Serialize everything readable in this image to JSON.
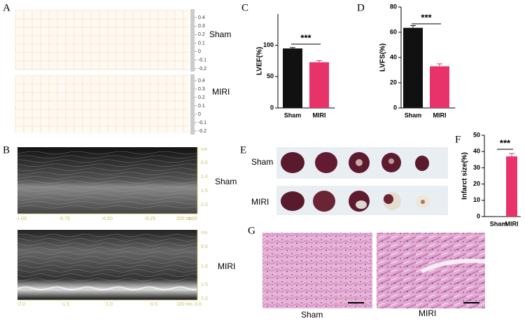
{
  "panel_labels": [
    "A",
    "B",
    "C",
    "D",
    "E",
    "F",
    "G"
  ],
  "ecg": {
    "groups": [
      "Sham",
      "MIRI"
    ],
    "ticks": [
      0.4,
      0.3,
      0.2,
      0.1,
      0,
      -0.1,
      -0.2
    ]
  },
  "echo": {
    "groups": [
      "Sham",
      "MIRI"
    ],
    "top": {
      "xticks": [
        "-1.00",
        "-0.75",
        "-0.50",
        "-0.25",
        "0.00"
      ],
      "yticks": [
        "cm",
        "0.5",
        "1.0",
        "1.5",
        "2.0"
      ],
      "scale": "200 ms"
    },
    "bottom": {
      "xticks": [
        "-2.0",
        "-1.5",
        "-1.0",
        "-0.5",
        "0.0"
      ],
      "yticks": [
        "cm",
        "0.5",
        "1.0",
        "1.5",
        "2.0"
      ],
      "scale": "100 ms"
    }
  },
  "ttc": {
    "groups": [
      "Sham",
      "MIRI"
    ]
  },
  "he": {
    "groups": [
      "Sham",
      "MIRI"
    ]
  },
  "chart_data": [
    {
      "type": "bar",
      "ylabel": "LVEF(%)",
      "categories": [
        "Sham",
        "MIRI"
      ],
      "values": [
        95,
        73
      ],
      "errors": [
        1.5,
        2.5
      ],
      "colors": [
        "#111111",
        "#e8336a"
      ],
      "ylim": [
        0,
        150
      ],
      "yticks": [
        0,
        50,
        100
      ],
      "annotation": "***"
    },
    {
      "type": "bar",
      "ylabel": "LVFS(%)",
      "categories": [
        "Sham",
        "MIRI"
      ],
      "values": [
        63.5,
        33
      ],
      "errors": [
        1.8,
        2
      ],
      "colors": [
        "#111111",
        "#e8336a"
      ],
      "ylim": [
        0,
        80
      ],
      "yticks": [
        0,
        20,
        40,
        60,
        80
      ],
      "annotation": "***"
    },
    {
      "type": "bar",
      "ylabel": "Infarct size(%)",
      "categories": [
        "Sham",
        "MIRI"
      ],
      "values": [
        0,
        37
      ],
      "errors": [
        0,
        1.8
      ],
      "colors": [
        "#111111",
        "#e8336a"
      ],
      "ylim": [
        0,
        50
      ],
      "yticks": [
        0,
        10,
        20,
        30,
        40,
        50
      ],
      "annotation": "***"
    }
  ]
}
